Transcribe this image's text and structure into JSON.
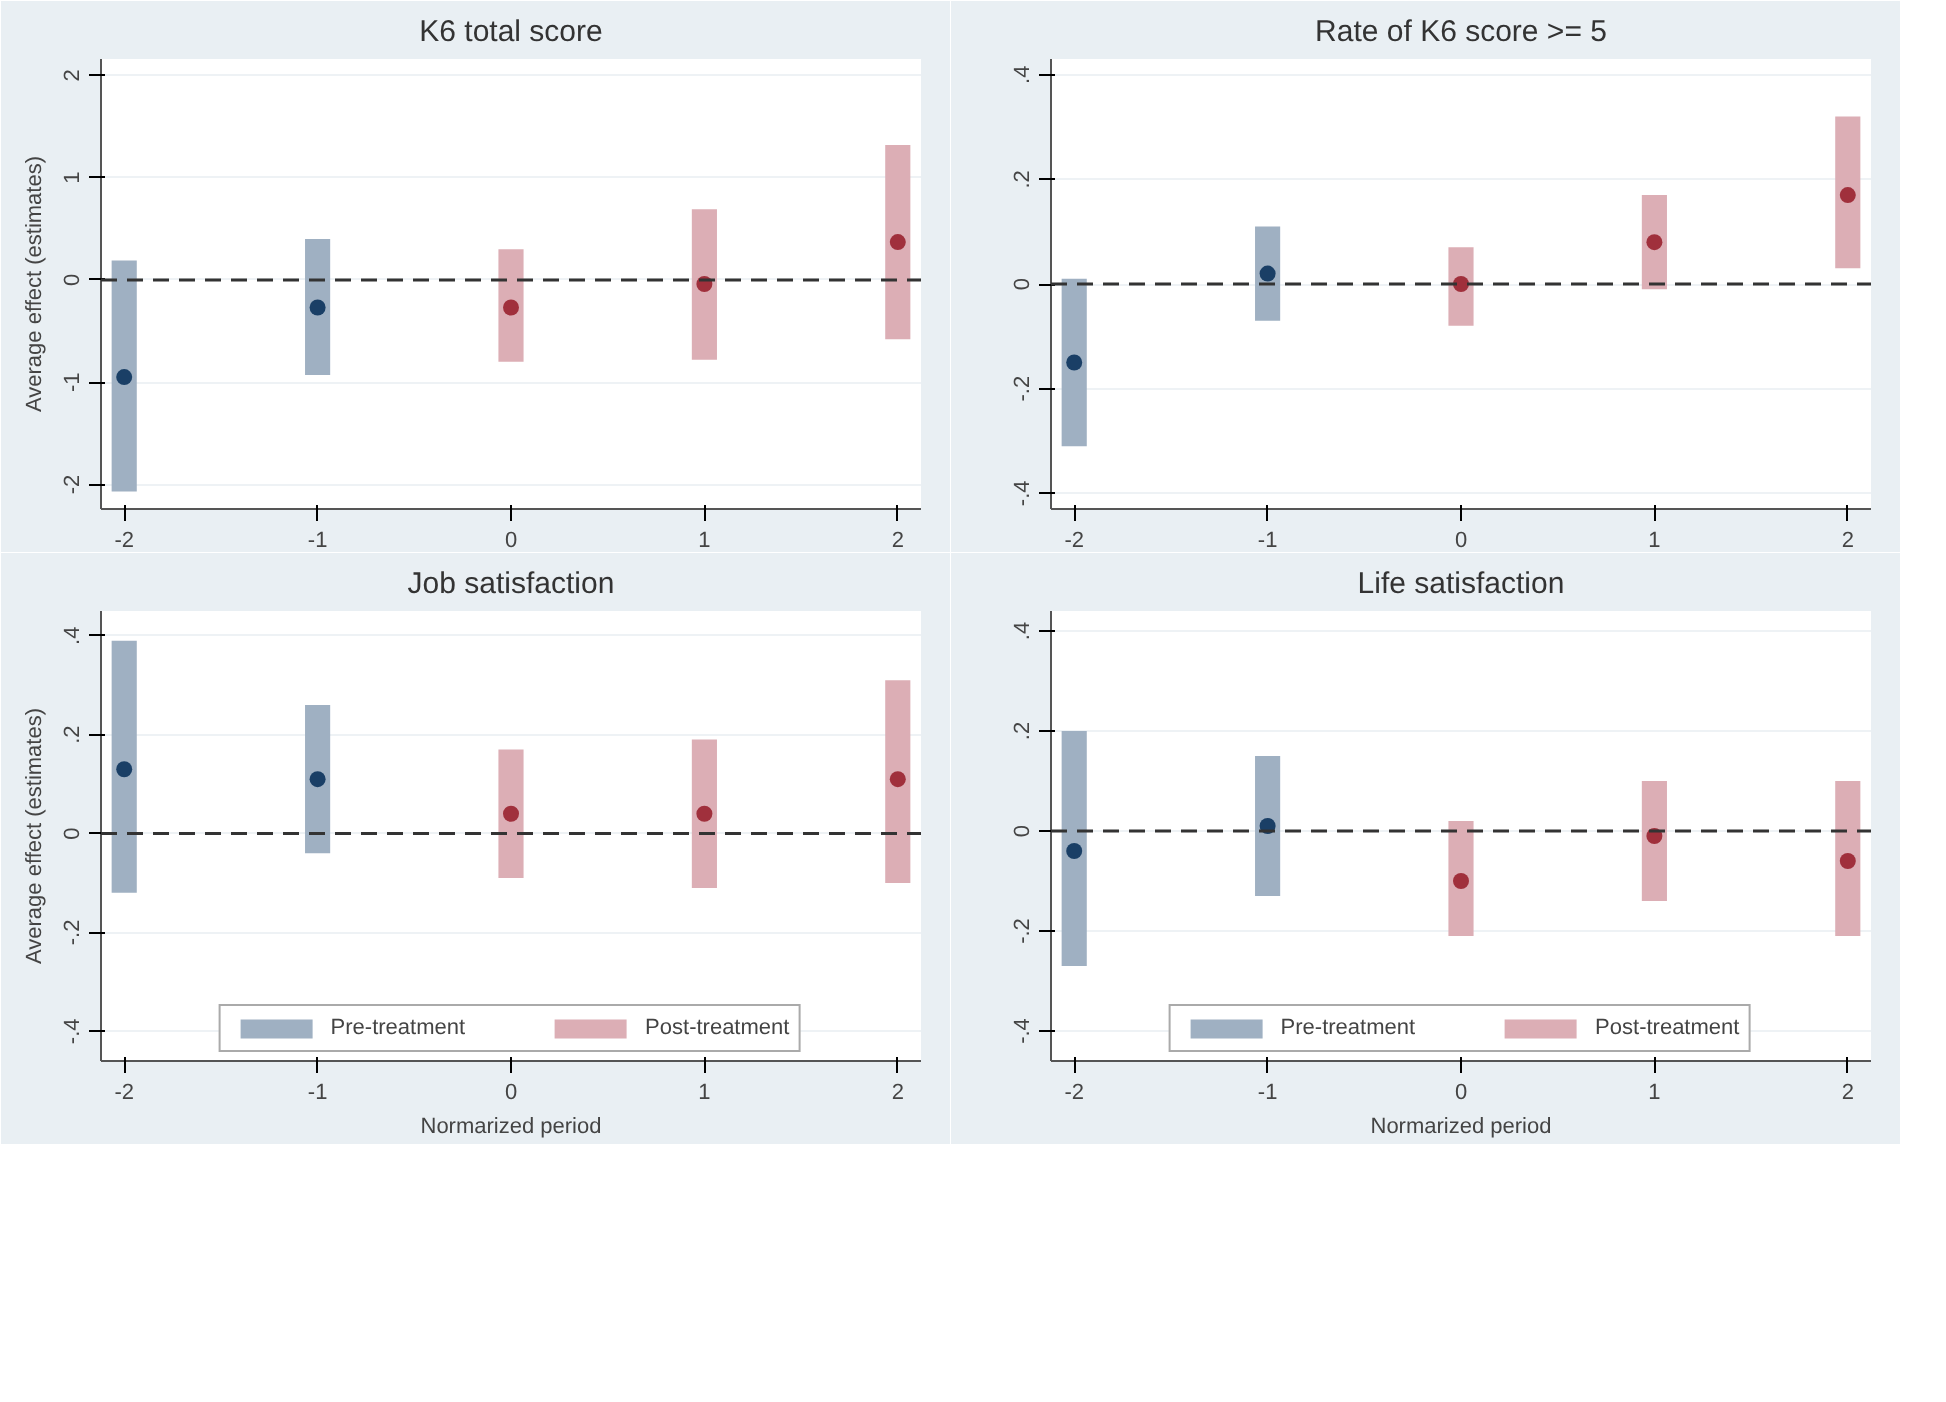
{
  "chart_data": [
    {
      "type": "bar",
      "title": "K6 total score",
      "ylabel": "Average effect (estimates)",
      "xlim": [
        -2.12,
        2.12
      ],
      "xticks": [
        -2,
        -1,
        0,
        1,
        2
      ],
      "ylim": [
        -2.24,
        2.16
      ],
      "yticks": [
        -2,
        -1,
        0,
        1,
        2
      ],
      "grid": "y",
      "legend": false,
      "ref_lines": [
        {
          "axis": "y",
          "value": 0,
          "color": "#333333",
          "line_style": "dashed"
        }
      ],
      "series": [
        {
          "color": "#9fb0c2",
          "x": [
            -2,
            -1
          ],
          "base": [
            -2.07,
            -0.93
          ],
          "values": [
            2.26,
            1.33
          ]
        },
        {
          "color": "#dcaeb5",
          "x": [
            0,
            1,
            2
          ],
          "base": [
            -0.8,
            -0.78,
            -0.58
          ],
          "values": [
            1.1,
            1.47,
            1.9
          ]
        },
        {
          "type": "scatter",
          "color": "#1a3f66",
          "x": [
            -2,
            -1
          ],
          "values": [
            -0.95,
            -0.27
          ]
        },
        {
          "type": "scatter",
          "color": "#a0303c",
          "x": [
            0,
            1,
            2
          ],
          "values": [
            -0.27,
            -0.04,
            0.37
          ]
        }
      ]
    },
    {
      "type": "bar",
      "title": "Rate of K6 score >= 5",
      "xlim": [
        -2.12,
        2.12
      ],
      "xticks": [
        -2,
        -1,
        0,
        1,
        2
      ],
      "ylim": [
        -0.43,
        0.43
      ],
      "yticks": [
        {
          "value": -0.4,
          "label": "-.4"
        },
        {
          "value": -0.2,
          "label": "-.2"
        },
        0,
        {
          "value": 0.2,
          "label": ".2"
        },
        {
          "value": 0.4,
          "label": ".4"
        }
      ],
      "grid": "y",
      "legend": false,
      "ref_lines": [
        {
          "axis": "y",
          "value": 0,
          "color": "#333333",
          "line_style": "dashed"
        }
      ],
      "series": [
        {
          "color": "#9fb0c2",
          "x": [
            -2,
            -1
          ],
          "base": [
            -0.31,
            -0.07
          ],
          "values": [
            0.32,
            0.18
          ]
        },
        {
          "color": "#dcaeb5",
          "x": [
            0,
            1,
            2
          ],
          "base": [
            -0.08,
            -0.01,
            0.03
          ],
          "values": [
            0.15,
            0.18,
            0.29
          ]
        },
        {
          "type": "scatter",
          "color": "#1a3f66",
          "x": [
            -2,
            -1
          ],
          "values": [
            -0.15,
            0.02
          ]
        },
        {
          "type": "scatter",
          "color": "#a0303c",
          "x": [
            0,
            1,
            2
          ],
          "values": [
            0.0,
            0.08,
            0.17
          ]
        }
      ]
    },
    {
      "type": "bar",
      "title": "Job satisfaction",
      "xlabel": "Normarized period",
      "ylabel": "Average effect (estimates)",
      "xlim": [
        -2.12,
        2.12
      ],
      "xticks": [
        -2,
        -1,
        0,
        1,
        2
      ],
      "ylim": [
        -0.46,
        0.45
      ],
      "yticks": [
        {
          "value": -0.4,
          "label": "-.4"
        },
        {
          "value": -0.2,
          "label": "-.2"
        },
        0,
        {
          "value": 0.2,
          "label": ".2"
        },
        {
          "value": 0.4,
          "label": ".4"
        }
      ],
      "grid": "y",
      "legend": "bottom",
      "ref_lines": [
        {
          "axis": "y",
          "value": 0,
          "color": "#333333",
          "line_style": "dashed"
        }
      ],
      "series": [
        {
          "name": "Pre-treatment",
          "color": "#9fb0c2",
          "x": [
            -2,
            -1
          ],
          "base": [
            -0.12,
            -0.04
          ],
          "values": [
            0.51,
            0.3
          ]
        },
        {
          "name": "Post-treatment",
          "color": "#dcaeb5",
          "x": [
            0,
            1,
            2
          ],
          "base": [
            -0.09,
            -0.11,
            -0.1
          ],
          "values": [
            0.26,
            0.3,
            0.41
          ]
        },
        {
          "type": "scatter",
          "color": "#1a3f66",
          "x": [
            -2,
            -1
          ],
          "values": [
            0.13,
            0.11
          ]
        },
        {
          "type": "scatter",
          "color": "#a0303c",
          "x": [
            0,
            1,
            2
          ],
          "values": [
            0.04,
            0.04,
            0.11
          ]
        }
      ]
    },
    {
      "type": "bar",
      "title": "Life satisfaction",
      "xlabel": "Normarized period",
      "xlim": [
        -2.12,
        2.12
      ],
      "xticks": [
        -2,
        -1,
        0,
        1,
        2
      ],
      "ylim": [
        -0.46,
        0.44
      ],
      "yticks": [
        {
          "value": -0.4,
          "label": "-.4"
        },
        {
          "value": -0.2,
          "label": "-.2"
        },
        0,
        {
          "value": 0.2,
          "label": ".2"
        },
        {
          "value": 0.4,
          "label": ".4"
        }
      ],
      "grid": "y",
      "legend": "bottom",
      "ref_lines": [
        {
          "axis": "y",
          "value": 0,
          "color": "#333333",
          "line_style": "dashed"
        }
      ],
      "series": [
        {
          "name": "Pre-treatment",
          "color": "#9fb0c2",
          "x": [
            -2,
            -1
          ],
          "base": [
            -0.27,
            -0.13
          ],
          "values": [
            0.47,
            0.28
          ]
        },
        {
          "name": "Post-treatment",
          "color": "#dcaeb5",
          "x": [
            0,
            1,
            2
          ],
          "base": [
            -0.21,
            -0.14,
            -0.21
          ],
          "values": [
            0.23,
            0.24,
            0.31
          ]
        },
        {
          "type": "scatter",
          "color": "#1a3f66",
          "x": [
            -2,
            -1
          ],
          "values": [
            -0.04,
            0.01
          ]
        },
        {
          "type": "scatter",
          "color": "#a0303c",
          "x": [
            0,
            1,
            2
          ],
          "values": [
            -0.1,
            -0.01,
            -0.06
          ]
        }
      ]
    }
  ]
}
